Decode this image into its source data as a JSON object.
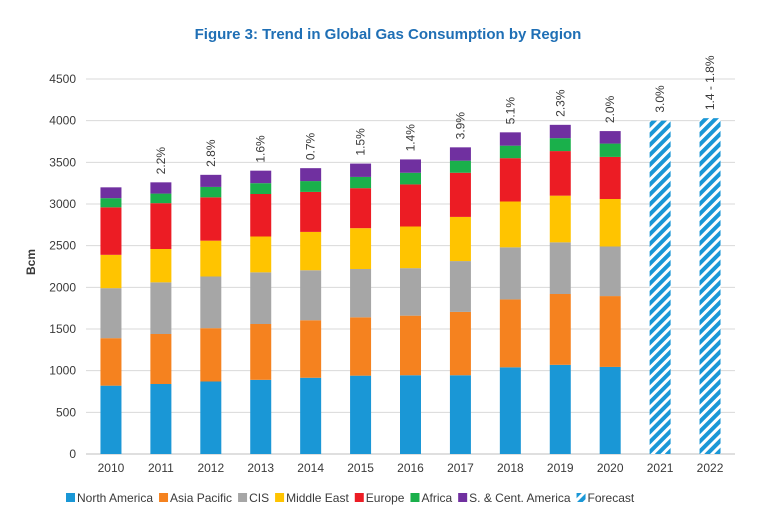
{
  "chart_data": {
    "type": "bar",
    "stacked": true,
    "title": "Figure 3: Trend in Global Gas Consumption by Region",
    "ylabel": "Bcm",
    "xlabel": "",
    "ylim": [
      0,
      4500
    ],
    "yticks": [
      0,
      500,
      1000,
      1500,
      2000,
      2500,
      3000,
      3500,
      4000,
      4500
    ],
    "grid": "horizontal",
    "legend_position": "bottom",
    "categories": [
      "2010",
      "2011",
      "2012",
      "2013",
      "2014",
      "2015",
      "2016",
      "2017",
      "2018",
      "2019",
      "2020",
      "2021",
      "2022"
    ],
    "series": [
      {
        "name": "North America",
        "color": "#1a97d6",
        "values": [
          820,
          840,
          870,
          890,
          915,
          940,
          945,
          945,
          1040,
          1070,
          1045,
          null,
          null
        ]
      },
      {
        "name": "Asia Pacific",
        "color": "#f5821f",
        "values": [
          570,
          600,
          640,
          670,
          690,
          700,
          715,
          760,
          815,
          850,
          850,
          null,
          null
        ]
      },
      {
        "name": "CIS",
        "color": "#a6a6a6",
        "values": [
          600,
          620,
          620,
          620,
          600,
          580,
          570,
          610,
          625,
          620,
          595,
          null,
          null
        ]
      },
      {
        "name": "Middle East",
        "color": "#ffc400",
        "values": [
          400,
          400,
          430,
          430,
          460,
          490,
          500,
          530,
          550,
          560,
          570,
          null,
          null
        ]
      },
      {
        "name": "Europe",
        "color": "#ec1c24",
        "values": [
          570,
          550,
          520,
          510,
          480,
          480,
          505,
          530,
          520,
          535,
          505,
          null,
          null
        ]
      },
      {
        "name": "Africa",
        "color": "#1ab04b",
        "values": [
          110,
          115,
          125,
          130,
          130,
          135,
          140,
          145,
          150,
          155,
          160,
          null,
          null
        ]
      },
      {
        "name": "S. & Cent. America",
        "color": "#7030a0",
        "values": [
          130,
          135,
          145,
          150,
          155,
          160,
          160,
          160,
          160,
          160,
          150,
          null,
          null
        ]
      },
      {
        "name": "Forecast",
        "color": "#1a97d6",
        "pattern": "hatched",
        "values": [
          null,
          null,
          null,
          null,
          null,
          null,
          null,
          null,
          null,
          null,
          null,
          4000,
          4030
        ]
      }
    ],
    "annotations": [
      "",
      "2.2%",
      "2.8%",
      "1.6%",
      "0.7%",
      "1.5%",
      "1.4%",
      "3.9%",
      "5.1%",
      "2.3%",
      "2.0%",
      "3.0%",
      "1.4 - 1.8%"
    ]
  }
}
